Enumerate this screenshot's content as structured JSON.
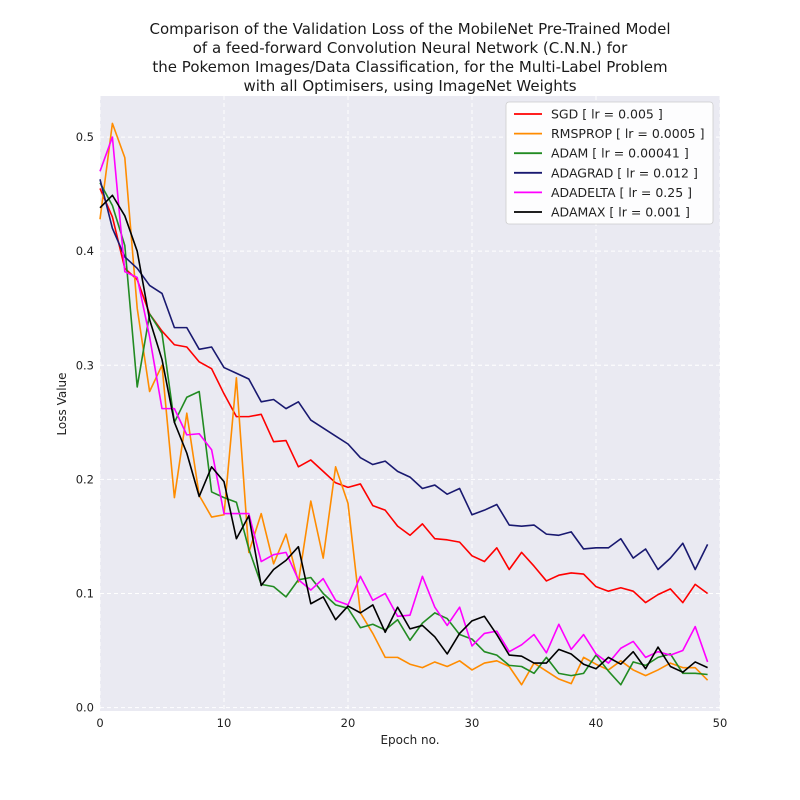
{
  "chart_data": {
    "type": "line",
    "title_lines": [
      "Comparison of the Validation Loss of the MobileNet Pre-Trained Model",
      "of a feed-forward Convolution Neural Network (C.N.N.) for",
      "the Pokemon Images/Data Classification, for the Multi-Label Problem",
      "with all Optimisers, using ImageNet Weights"
    ],
    "xlabel": "Epoch no.",
    "ylabel": "Loss Value",
    "xlim": [
      0,
      50
    ],
    "ylim": [
      -0.003,
      0.536
    ],
    "x_ticks": [
      0,
      10,
      20,
      30,
      40,
      50
    ],
    "y_ticks": [
      0.0,
      0.1,
      0.2,
      0.3,
      0.4,
      0.5
    ],
    "x_tick_labels": [
      "0",
      "10",
      "20",
      "30",
      "40",
      "50"
    ],
    "y_tick_labels": [
      "0.0",
      "0.1",
      "0.2",
      "0.3",
      "0.4",
      "0.5"
    ],
    "grid": true,
    "legend_position": "top-right",
    "series": [
      {
        "name": "SGD [ lr = 0.005 ]",
        "color": "#ff0000",
        "values": [
          0.455,
          0.43,
          0.385,
          0.375,
          0.345,
          0.33,
          0.318,
          0.316,
          0.303,
          0.297,
          0.275,
          0.255,
          0.255,
          0.257,
          0.233,
          0.234,
          0.211,
          0.217,
          0.207,
          0.197,
          0.193,
          0.196,
          0.177,
          0.173,
          0.159,
          0.151,
          0.161,
          0.148,
          0.147,
          0.145,
          0.133,
          0.128,
          0.14,
          0.121,
          0.136,
          0.124,
          0.111,
          0.116,
          0.118,
          0.117,
          0.106,
          0.102,
          0.105,
          0.102,
          0.092,
          0.099,
          0.104,
          0.092,
          0.108,
          0.1
        ]
      },
      {
        "name": "RMSPROP [ lr = 0.0005 ]",
        "color": "#ff8c00",
        "values": [
          0.428,
          0.512,
          0.482,
          0.35,
          0.277,
          0.3,
          0.184,
          0.258,
          0.186,
          0.167,
          0.169,
          0.289,
          0.136,
          0.17,
          0.126,
          0.152,
          0.11,
          0.181,
          0.131,
          0.211,
          0.179,
          0.083,
          0.065,
          0.044,
          0.044,
          0.038,
          0.035,
          0.04,
          0.036,
          0.041,
          0.033,
          0.039,
          0.041,
          0.036,
          0.02,
          0.039,
          0.032,
          0.025,
          0.021,
          0.044,
          0.038,
          0.033,
          0.041,
          0.033,
          0.028,
          0.033,
          0.039,
          0.035,
          0.035,
          0.024
        ]
      },
      {
        "name": "ADAM [ lr = 0.00041 ]",
        "color": "#228b22",
        "values": [
          0.46,
          0.44,
          0.405,
          0.281,
          0.345,
          0.328,
          0.25,
          0.272,
          0.277,
          0.189,
          0.184,
          0.18,
          0.139,
          0.108,
          0.106,
          0.097,
          0.112,
          0.114,
          0.1,
          0.09,
          0.087,
          0.07,
          0.073,
          0.068,
          0.077,
          0.059,
          0.074,
          0.083,
          0.078,
          0.064,
          0.06,
          0.049,
          0.046,
          0.037,
          0.036,
          0.03,
          0.044,
          0.03,
          0.028,
          0.03,
          0.046,
          0.032,
          0.02,
          0.04,
          0.037,
          0.044,
          0.047,
          0.03,
          0.03,
          0.029
        ]
      },
      {
        "name": "ADAGRAD [ lr = 0.012 ]",
        "color": "#191970",
        "values": [
          0.463,
          0.42,
          0.395,
          0.385,
          0.37,
          0.363,
          0.333,
          0.333,
          0.314,
          0.316,
          0.298,
          0.293,
          0.288,
          0.268,
          0.27,
          0.262,
          0.268,
          0.252,
          0.245,
          0.238,
          0.231,
          0.219,
          0.213,
          0.216,
          0.207,
          0.202,
          0.192,
          0.195,
          0.187,
          0.192,
          0.169,
          0.173,
          0.178,
          0.16,
          0.159,
          0.16,
          0.152,
          0.151,
          0.154,
          0.139,
          0.14,
          0.14,
          0.148,
          0.131,
          0.139,
          0.121,
          0.131,
          0.144,
          0.121,
          0.143
        ]
      },
      {
        "name": "ADADELTA [ lr = 0.25 ]",
        "color": "#ff00ff",
        "values": [
          0.47,
          0.5,
          0.382,
          0.377,
          0.325,
          0.262,
          0.262,
          0.239,
          0.24,
          0.226,
          0.17,
          0.17,
          0.17,
          0.128,
          0.134,
          0.136,
          0.112,
          0.103,
          0.113,
          0.094,
          0.09,
          0.115,
          0.094,
          0.1,
          0.08,
          0.081,
          0.115,
          0.088,
          0.072,
          0.088,
          0.054,
          0.065,
          0.067,
          0.049,
          0.055,
          0.064,
          0.048,
          0.073,
          0.051,
          0.064,
          0.047,
          0.039,
          0.052,
          0.058,
          0.044,
          0.049,
          0.046,
          0.05,
          0.071,
          0.04
        ]
      },
      {
        "name": "ADAMAX [ lr = 0.001 ]",
        "color": "#000000",
        "values": [
          0.438,
          0.449,
          0.431,
          0.4,
          0.34,
          0.305,
          0.25,
          0.223,
          0.185,
          0.211,
          0.198,
          0.148,
          0.168,
          0.107,
          0.121,
          0.129,
          0.141,
          0.091,
          0.097,
          0.077,
          0.089,
          0.083,
          0.09,
          0.066,
          0.088,
          0.069,
          0.072,
          0.062,
          0.047,
          0.065,
          0.076,
          0.08,
          0.064,
          0.046,
          0.045,
          0.039,
          0.039,
          0.051,
          0.047,
          0.038,
          0.034,
          0.044,
          0.038,
          0.049,
          0.034,
          0.053,
          0.036,
          0.031,
          0.04,
          0.035
        ]
      }
    ]
  }
}
